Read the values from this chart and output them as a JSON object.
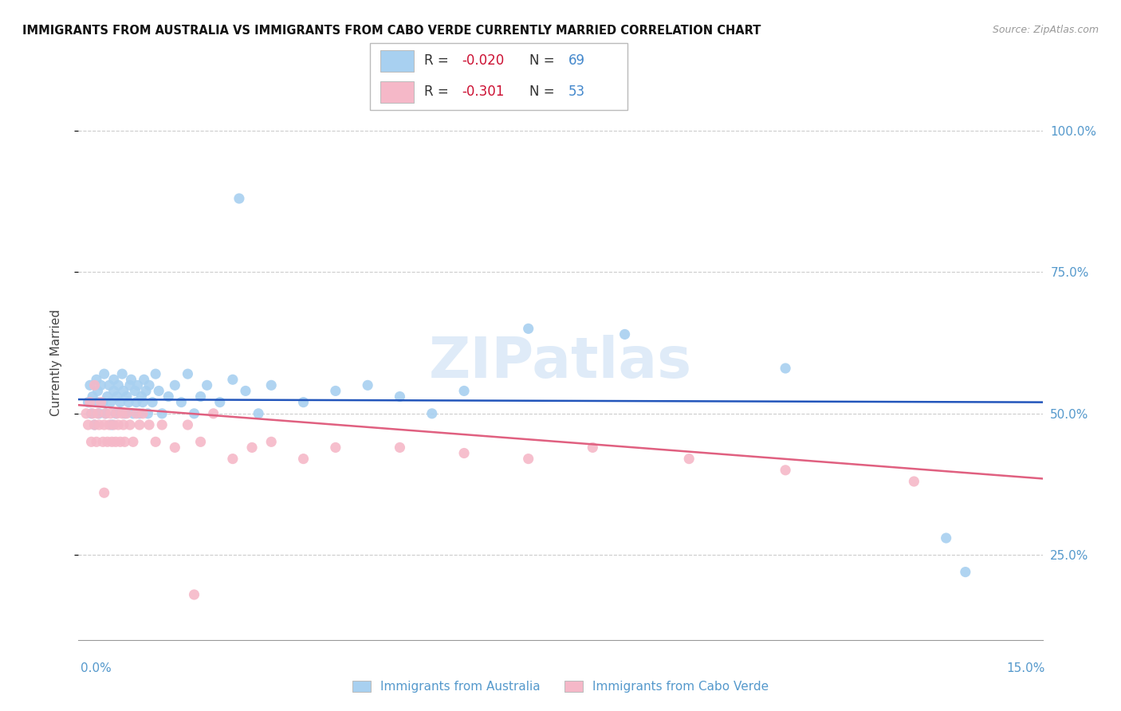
{
  "title": "IMMIGRANTS FROM AUSTRALIA VS IMMIGRANTS FROM CABO VERDE CURRENTLY MARRIED CORRELATION CHART",
  "source": "Source: ZipAtlas.com",
  "ylabel": "Currently Married",
  "xlim": [
    0.0,
    15.0
  ],
  "ylim": [
    10.0,
    108.0
  ],
  "yticks": [
    25.0,
    50.0,
    75.0,
    100.0
  ],
  "yright_labels": [
    "25.0%",
    "50.0%",
    "75.0%",
    "100.0%"
  ],
  "color_australia": "#a8d0f0",
  "color_cabo_verde": "#f5b8c8",
  "line_color_australia": "#2255bb",
  "line_color_cabo_verde": "#e06080",
  "watermark": "ZIPatlas",
  "legend_r1": "-0.020",
  "legend_n1": "69",
  "legend_r2": "-0.301",
  "legend_n2": "53",
  "australia_x": [
    0.15,
    0.18,
    0.2,
    0.22,
    0.25,
    0.28,
    0.3,
    0.3,
    0.32,
    0.35,
    0.38,
    0.4,
    0.42,
    0.45,
    0.48,
    0.5,
    0.52,
    0.55,
    0.55,
    0.58,
    0.6,
    0.62,
    0.65,
    0.68,
    0.7,
    0.72,
    0.75,
    0.78,
    0.8,
    0.82,
    0.85,
    0.88,
    0.9,
    0.92,
    0.95,
    0.98,
    1.0,
    1.02,
    1.05,
    1.08,
    1.1,
    1.15,
    1.2,
    1.25,
    1.3,
    1.4,
    1.5,
    1.6,
    1.7,
    1.8,
    1.9,
    2.0,
    2.2,
    2.4,
    2.6,
    2.8,
    3.0,
    3.5,
    4.0,
    4.5,
    5.0,
    5.5,
    6.0,
    7.0,
    8.5,
    11.0,
    13.5,
    13.8,
    2.5
  ],
  "australia_y": [
    52,
    55,
    50,
    53,
    48,
    56,
    54,
    52,
    50,
    55,
    52,
    57,
    50,
    53,
    55,
    52,
    48,
    56,
    54,
    50,
    53,
    55,
    52,
    57,
    54,
    50,
    53,
    52,
    55,
    56,
    50,
    54,
    52,
    55,
    50,
    53,
    52,
    56,
    54,
    50,
    55,
    52,
    57,
    54,
    50,
    53,
    55,
    52,
    57,
    50,
    53,
    55,
    52,
    56,
    54,
    50,
    55,
    52,
    54,
    55,
    53,
    50,
    54,
    65,
    64,
    58,
    28,
    22,
    88
  ],
  "cabo_verde_x": [
    0.12,
    0.15,
    0.18,
    0.2,
    0.22,
    0.25,
    0.28,
    0.3,
    0.32,
    0.35,
    0.38,
    0.4,
    0.42,
    0.45,
    0.48,
    0.5,
    0.52,
    0.55,
    0.58,
    0.6,
    0.62,
    0.65,
    0.68,
    0.7,
    0.72,
    0.75,
    0.8,
    0.85,
    0.9,
    0.95,
    1.0,
    1.1,
    1.2,
    1.3,
    1.5,
    1.7,
    1.9,
    2.1,
    2.4,
    2.7,
    3.0,
    3.5,
    4.0,
    5.0,
    6.0,
    7.0,
    8.0,
    9.5,
    11.0,
    13.0,
    1.8,
    0.4,
    0.25
  ],
  "cabo_verde_y": [
    50,
    48,
    52,
    45,
    50,
    48,
    45,
    50,
    48,
    52,
    45,
    48,
    50,
    45,
    48,
    50,
    45,
    48,
    45,
    50,
    48,
    45,
    50,
    48,
    45,
    50,
    48,
    45,
    50,
    48,
    50,
    48,
    45,
    48,
    44,
    48,
    45,
    50,
    42,
    44,
    45,
    42,
    44,
    44,
    43,
    42,
    44,
    42,
    40,
    38,
    18,
    36,
    55
  ]
}
